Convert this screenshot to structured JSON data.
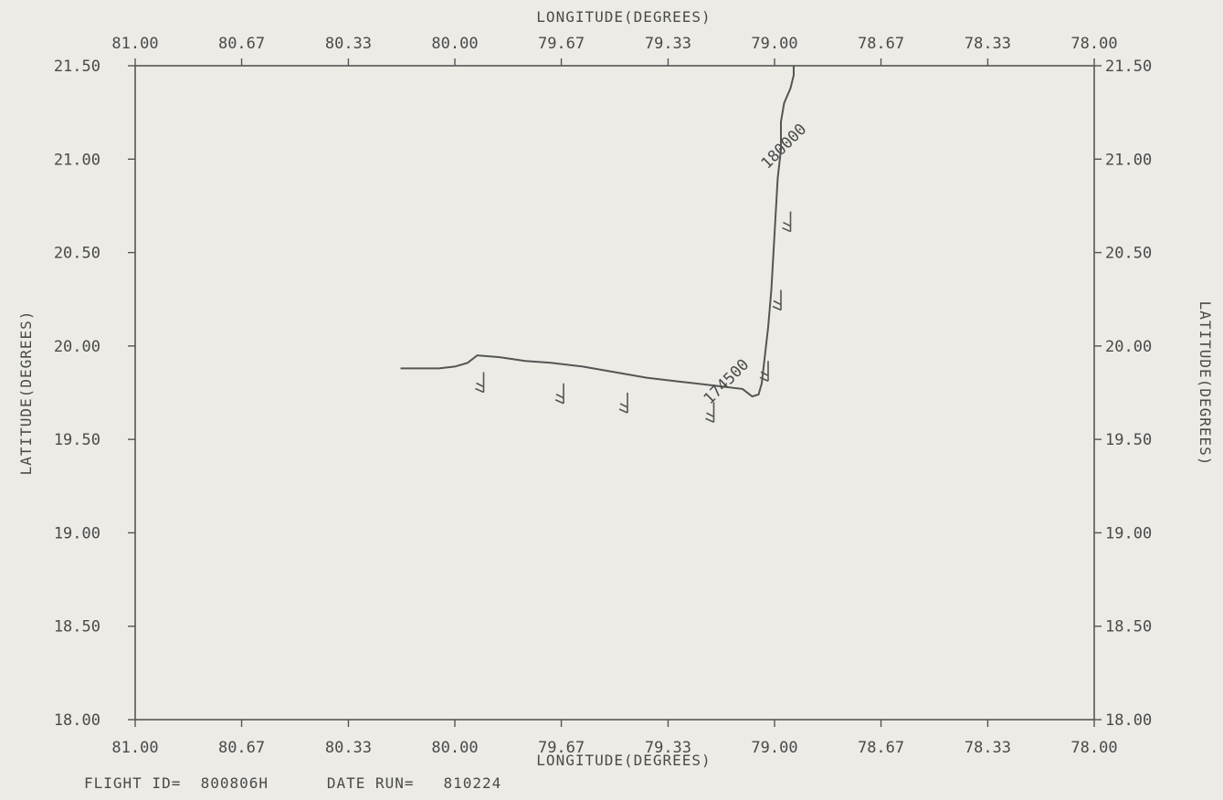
{
  "chart_data": {
    "type": "line",
    "title": "",
    "xlabel": "LONGITUDE(DEGREES)",
    "ylabel": "LATITUDE(DEGREES)",
    "xlim": [
      81.0,
      78.0
    ],
    "ylim": [
      18.0,
      21.5
    ],
    "x_ticks": [
      "81.00",
      "80.67",
      "80.33",
      "80.00",
      "79.67",
      "79.33",
      "79.00",
      "78.67",
      "78.33",
      "78.00"
    ],
    "y_ticks": [
      "21.50",
      "21.00",
      "20.50",
      "20.00",
      "19.50",
      "19.00",
      "18.50",
      "18.00"
    ],
    "x_tick_values": [
      81.0,
      80.667,
      80.333,
      80.0,
      79.667,
      79.333,
      79.0,
      78.667,
      78.333,
      78.0
    ],
    "y_tick_values": [
      21.5,
      21.0,
      20.5,
      20.0,
      19.5,
      19.0,
      18.5,
      18.0
    ],
    "grid": false,
    "track": {
      "lon": [
        80.17,
        80.05,
        80.0,
        79.96,
        79.93,
        79.86,
        79.78,
        79.7,
        79.6,
        79.5,
        79.4,
        79.3,
        79.2,
        79.1,
        79.07,
        79.05,
        79.04,
        79.03,
        79.02,
        79.01,
        79.0,
        78.99,
        78.98,
        78.98,
        78.97,
        78.95,
        78.94,
        78.94
      ],
      "lat": [
        19.88,
        19.88,
        19.89,
        19.91,
        19.95,
        19.94,
        19.92,
        19.91,
        19.89,
        19.86,
        19.83,
        19.81,
        19.79,
        19.77,
        19.73,
        19.74,
        19.8,
        19.95,
        20.1,
        20.3,
        20.6,
        20.9,
        21.05,
        21.2,
        21.3,
        21.38,
        21.45,
        21.5
      ]
    },
    "wind_barbs": [
      {
        "lon": 79.91,
        "lat": 19.86
      },
      {
        "lon": 79.66,
        "lat": 19.8
      },
      {
        "lon": 79.46,
        "lat": 19.75
      },
      {
        "lon": 79.19,
        "lat": 19.7
      },
      {
        "lon": 79.02,
        "lat": 19.92
      },
      {
        "lon": 78.98,
        "lat": 20.3
      },
      {
        "lon": 78.95,
        "lat": 20.72
      }
    ],
    "annotations": [
      {
        "text": "174500",
        "lon": 79.14,
        "lat": 19.79,
        "angle": -45
      },
      {
        "text": "180000",
        "lon": 78.96,
        "lat": 21.05,
        "angle": -45
      }
    ]
  },
  "footer": {
    "flight_id_label": "FLIGHT ID=",
    "flight_id_value": "800806H",
    "date_run_label": "DATE RUN=",
    "date_run_value": "810224"
  }
}
